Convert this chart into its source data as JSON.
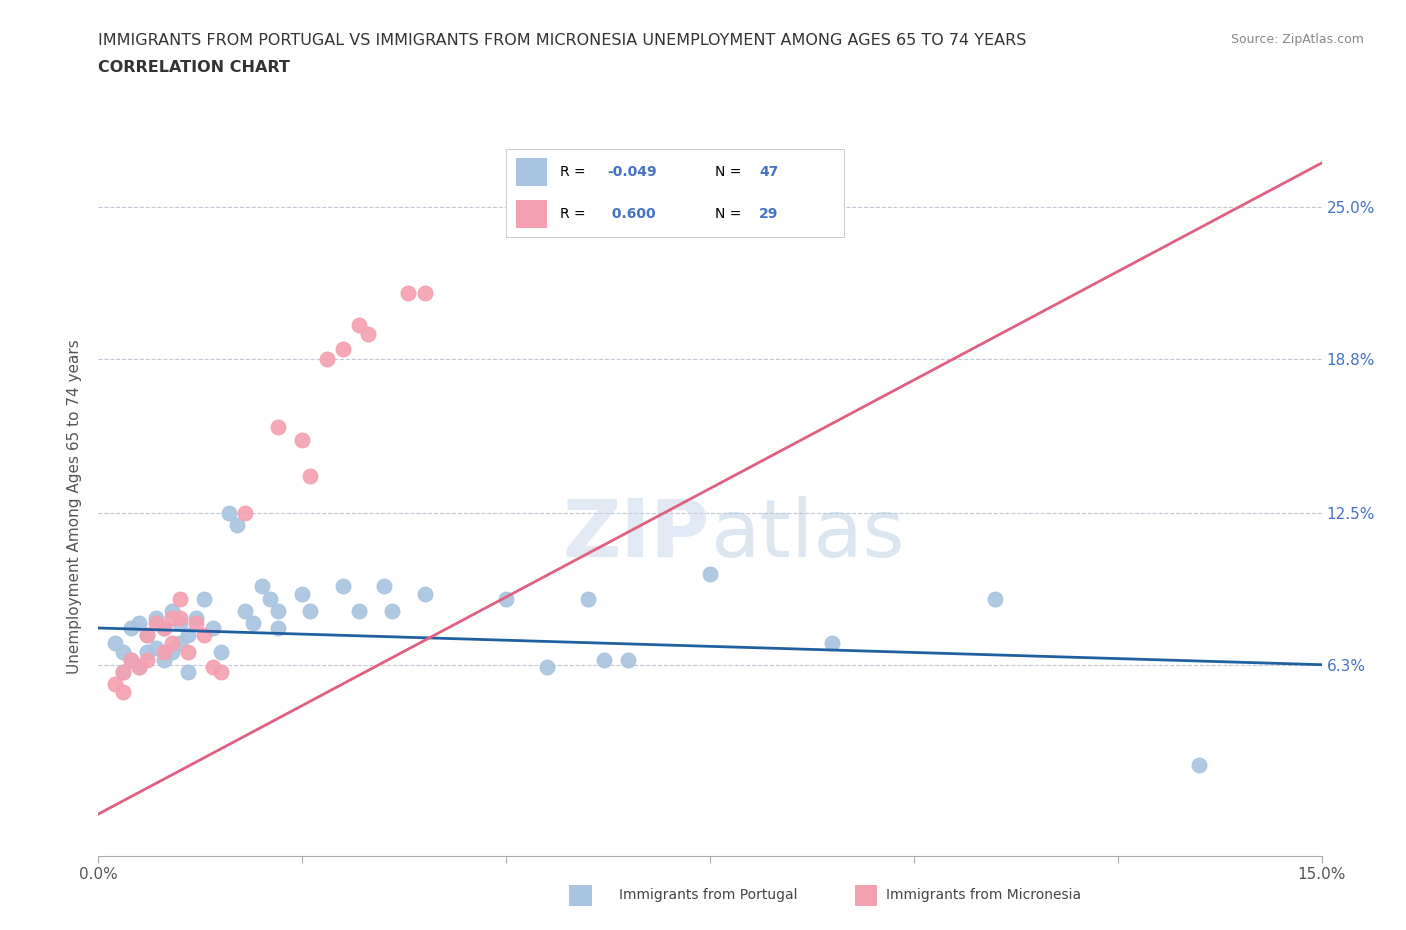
{
  "title_line1": "IMMIGRANTS FROM PORTUGAL VS IMMIGRANTS FROM MICRONESIA UNEMPLOYMENT AMONG AGES 65 TO 74 YEARS",
  "title_line2": "CORRELATION CHART",
  "source": "Source: ZipAtlas.com",
  "ylabel": "Unemployment Among Ages 65 to 74 years",
  "xlim": [
    0.0,
    0.15
  ],
  "ylim": [
    -0.015,
    0.27
  ],
  "portugal_color": "#a8c4e0",
  "micronesia_color": "#f4a0b0",
  "portugal_line_color": "#2060a0",
  "micronesia_line_color": "#e06080",
  "portugal_R": -0.049,
  "portugal_N": 47,
  "micronesia_R": 0.6,
  "micronesia_N": 29,
  "portugal_points": [
    [
      0.002,
      0.072
    ],
    [
      0.003,
      0.068
    ],
    [
      0.003,
      0.06
    ],
    [
      0.004,
      0.078
    ],
    [
      0.004,
      0.065
    ],
    [
      0.005,
      0.08
    ],
    [
      0.005,
      0.062
    ],
    [
      0.006,
      0.075
    ],
    [
      0.006,
      0.068
    ],
    [
      0.007,
      0.082
    ],
    [
      0.007,
      0.07
    ],
    [
      0.008,
      0.078
    ],
    [
      0.008,
      0.065
    ],
    [
      0.009,
      0.085
    ],
    [
      0.009,
      0.068
    ],
    [
      0.01,
      0.08
    ],
    [
      0.01,
      0.072
    ],
    [
      0.011,
      0.075
    ],
    [
      0.011,
      0.06
    ],
    [
      0.012,
      0.082
    ],
    [
      0.013,
      0.09
    ],
    [
      0.014,
      0.078
    ],
    [
      0.015,
      0.068
    ],
    [
      0.016,
      0.125
    ],
    [
      0.017,
      0.12
    ],
    [
      0.018,
      0.085
    ],
    [
      0.019,
      0.08
    ],
    [
      0.02,
      0.095
    ],
    [
      0.021,
      0.09
    ],
    [
      0.022,
      0.085
    ],
    [
      0.022,
      0.078
    ],
    [
      0.025,
      0.092
    ],
    [
      0.026,
      0.085
    ],
    [
      0.03,
      0.095
    ],
    [
      0.032,
      0.085
    ],
    [
      0.035,
      0.095
    ],
    [
      0.036,
      0.085
    ],
    [
      0.04,
      0.092
    ],
    [
      0.05,
      0.09
    ],
    [
      0.055,
      0.062
    ],
    [
      0.06,
      0.09
    ],
    [
      0.062,
      0.065
    ],
    [
      0.065,
      0.065
    ],
    [
      0.075,
      0.1
    ],
    [
      0.09,
      0.072
    ],
    [
      0.11,
      0.09
    ],
    [
      0.135,
      0.022
    ]
  ],
  "micronesia_points": [
    [
      0.002,
      0.055
    ],
    [
      0.003,
      0.06
    ],
    [
      0.003,
      0.052
    ],
    [
      0.004,
      0.065
    ],
    [
      0.005,
      0.062
    ],
    [
      0.006,
      0.075
    ],
    [
      0.006,
      0.065
    ],
    [
      0.007,
      0.08
    ],
    [
      0.008,
      0.078
    ],
    [
      0.008,
      0.068
    ],
    [
      0.009,
      0.082
    ],
    [
      0.009,
      0.072
    ],
    [
      0.01,
      0.09
    ],
    [
      0.01,
      0.082
    ],
    [
      0.011,
      0.068
    ],
    [
      0.012,
      0.08
    ],
    [
      0.013,
      0.075
    ],
    [
      0.014,
      0.062
    ],
    [
      0.015,
      0.06
    ],
    [
      0.018,
      0.125
    ],
    [
      0.022,
      0.16
    ],
    [
      0.025,
      0.155
    ],
    [
      0.026,
      0.14
    ],
    [
      0.028,
      0.188
    ],
    [
      0.03,
      0.192
    ],
    [
      0.032,
      0.202
    ],
    [
      0.033,
      0.198
    ],
    [
      0.038,
      0.215
    ],
    [
      0.04,
      0.215
    ]
  ],
  "background_color": "#ffffff",
  "grid_color": "#c0c8d8",
  "watermark_text": "ZIPatlas",
  "title_color": "#333333",
  "axis_label_color": "#555555",
  "right_label_color": "#4472c4",
  "legend_r_color": "#4472c4",
  "port_line_x": [
    0.0,
    0.15
  ],
  "port_line_y": [
    0.078,
    0.063
  ],
  "micro_line_x": [
    0.0,
    0.15
  ],
  "micro_line_y": [
    0.002,
    0.268
  ]
}
